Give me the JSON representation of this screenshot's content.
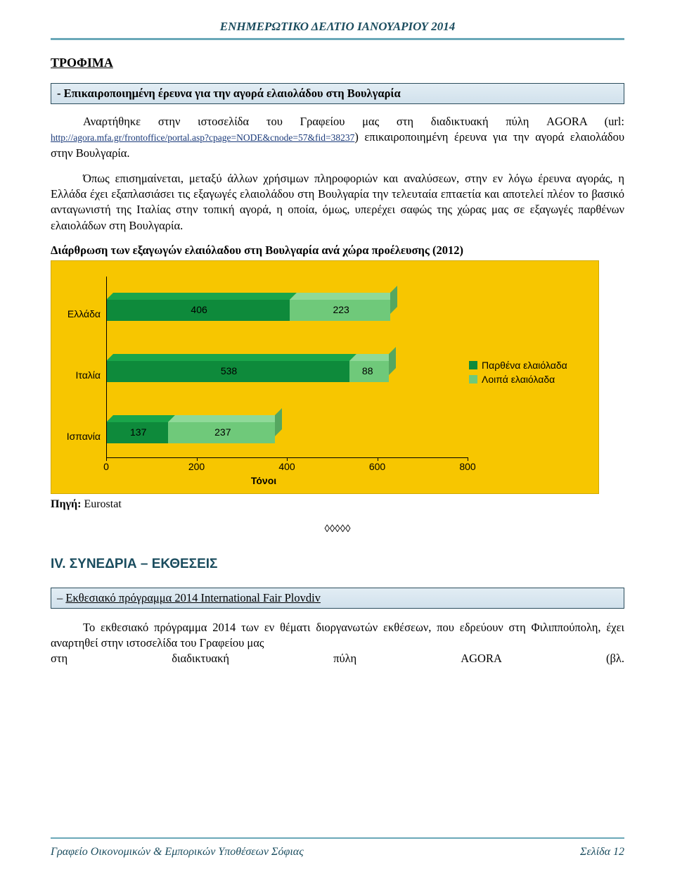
{
  "header": {
    "title": "ΕΝΗΜΕΡΩΤΙΚΟ ΔΕΛΤΙΟ ΙΑΝΟΥΑΡΙΟΥ 2014"
  },
  "section1": {
    "title": "ΤΡΟΦΙΜΑ",
    "banner": "-  Επικαιροποιημένη έρευνα για την αγορά ελαιολάδου στη Βουλγαρία",
    "para1_a": "Αναρτήθηκε στην ιστοσελίδα του Γραφείου μας στη διαδικτυακή πύλη AGORA   (url:   ",
    "para1_link": "http://agora.mfa.gr/frontoffice/portal.asp?cpage=NODE&cnode=57&fid=38237",
    "para1_b": ") επικαιροποιημένη έρευνα για την αγορά ελαιολάδου στην Βουλγαρία.",
    "para2": "Όπως επισημαίνεται, μεταξύ άλλων χρήσιμων πληροφοριών και αναλύσεων, στην εν λόγω έρευνα αγοράς, η Ελλάδα έχει εξαπλασιάσει τις εξαγωγές ελαιολάδου στη Βουλγαρία την τελευταία επταετία και αποτελεί πλέον το βασικό ανταγωνιστή της Ιταλίας στην τοπική αγορά, η οποία, όμως, υπερέχει σαφώς της χώρας μας σε εξαγωγές παρθένων ελαιολάδων στη Βουλγαρία.",
    "chart_title": "Διάρθρωση των εξαγωγών ελαιόλαδου στη Βουλγαρία ανά χώρα προέλευσης (2012)"
  },
  "chart": {
    "type": "stacked-bar-horizontal-3d",
    "background_color": "#f7c600",
    "series": [
      {
        "name": "Παρθένα ελαιόλαδα",
        "color": "#0e8a3b",
        "color_light": "#1aa54a",
        "color_dark": "#0b6b2e"
      },
      {
        "name": "Λοιπά ελαιόλαδα",
        "color": "#6fc97a",
        "color_light": "#8fd998",
        "color_dark": "#55a760"
      }
    ],
    "categories": [
      "Ελλάδα",
      "Ιταλία",
      "Ισπανία"
    ],
    "data": [
      {
        "virgin": 406,
        "other": 223
      },
      {
        "virgin": 538,
        "other": 88
      },
      {
        "virgin": 137,
        "other": 237
      }
    ],
    "x_ticks": [
      0,
      200,
      400,
      600,
      800
    ],
    "xlim": [
      0,
      800
    ],
    "x_title": "Τόνοι",
    "label_fontsize": 14,
    "axis_color": "#000000"
  },
  "source": {
    "label": "Πηγή:",
    "value": "Eurostat"
  },
  "diamonds": "◊◊◊◊◊",
  "section_iv": {
    "title": "IV. ΣΥΝΕΔΡΙΑ – ΕΚΘΕΣΕΙΣ"
  },
  "banner2": {
    "prefix": "–",
    "text": "Εκθεσιακό πρόγραμμα 2014 International Fair Plovdiv"
  },
  "para3": "Το εκθεσιακό πρόγραμμα 2014 των εν θέματι διοργανωτών εκθέσεων, που εδρεύουν στη Φιλιππούπολη, έχει αναρτηθεί στην ιστοσελίδα του Γραφείου μας",
  "para3_line2": {
    "a": "στη",
    "b": "διαδικτυακή",
    "c": "πύλη",
    "d": "AGORA",
    "e": "(βλ."
  },
  "footer": {
    "left": "Γραφείο Οικονομικών & Εμπορικών Υποθέσεων Σόφιας",
    "right": "Σελίδα 12"
  }
}
